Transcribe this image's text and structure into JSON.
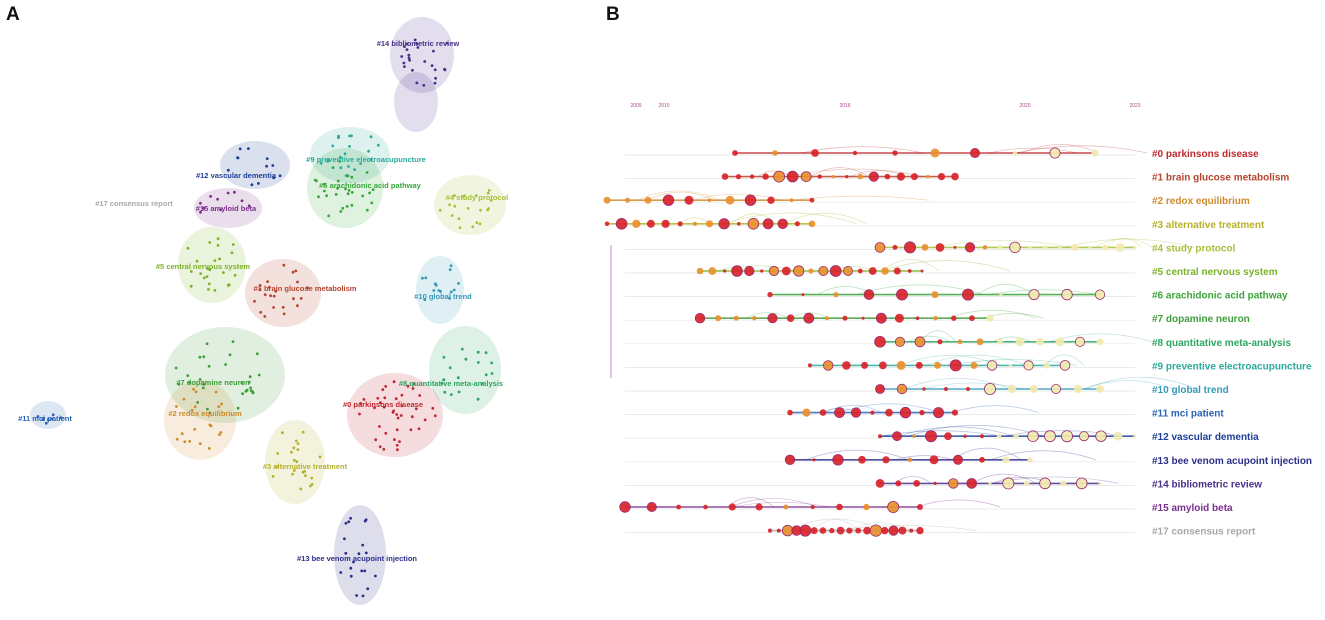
{
  "panels": {
    "a": "A",
    "b": "B"
  },
  "colors": {
    "c0": "#c0282f",
    "c1": "#b5452e",
    "c2": "#d08a2a",
    "c3": "#b5b229",
    "c4": "#a6c13c",
    "c5": "#7ab327",
    "c6": "#3aa53a",
    "c7": "#3f9e3a",
    "c8": "#2da561",
    "c9": "#2aab9b",
    "c10": "#3599b8",
    "c11": "#2a62b5",
    "c12": "#1e3f97",
    "c13": "#2b2e8a",
    "c14": "#4a2f8c",
    "c15": "#7b2f8c",
    "c17": "#a8a8a8"
  },
  "network": {
    "clusters": [
      {
        "id": "c14",
        "label": "#14 bibliometric review",
        "color": "c14"
      },
      {
        "id": "c9",
        "label": "#9 preventive electroacupuncture",
        "color": "c9"
      },
      {
        "id": "c12",
        "label": "#12 vascular dementia",
        "color": "c12"
      },
      {
        "id": "c6",
        "label": "#6 arachidonic acid pathway",
        "color": "c6"
      },
      {
        "id": "c17",
        "label": "#17 consensus report",
        "color": "c17"
      },
      {
        "id": "c15",
        "label": "#15 amyloid beta",
        "color": "c15"
      },
      {
        "id": "c4",
        "label": "#4 study protocol",
        "color": "c4"
      },
      {
        "id": "c5",
        "label": "#5 central nervous system",
        "color": "c5"
      },
      {
        "id": "c1",
        "label": "#1 brain glucose metabolism",
        "color": "c1"
      },
      {
        "id": "c10",
        "label": "#10 global trend",
        "color": "c10"
      },
      {
        "id": "c7",
        "label": "#7 dopamine neuron",
        "color": "c7"
      },
      {
        "id": "c8",
        "label": "#8 quantitative meta-analysis",
        "color": "c8"
      },
      {
        "id": "c0",
        "label": "#0 parkinsons disease",
        "color": "c0"
      },
      {
        "id": "c11",
        "label": "#11 mci patient",
        "color": "c11"
      },
      {
        "id": "c2",
        "label": "#2 redox equilibrium",
        "color": "c2"
      },
      {
        "id": "c3",
        "label": "#3 alternative treatment",
        "color": "c3"
      },
      {
        "id": "c13",
        "label": "#13 bee venom acupoint injection",
        "color": "c13"
      }
    ]
  },
  "timeline": {
    "years": [
      "2009",
      "2010",
      "2016",
      "2020",
      "2023"
    ],
    "clusters": [
      {
        "label": "#0 parkinsons disease",
        "color": "c0"
      },
      {
        "label": "#1 brain glucose metabolism",
        "color": "c1"
      },
      {
        "label": "#2 redox equilibrium",
        "color": "c2"
      },
      {
        "label": "#3 alternative treatment",
        "color": "c3"
      },
      {
        "label": "#4 study protocol",
        "color": "c4"
      },
      {
        "label": "#5 central nervous system",
        "color": "c5"
      },
      {
        "label": "#6 arachidonic acid pathway",
        "color": "c6"
      },
      {
        "label": "#7 dopamine neuron",
        "color": "c7"
      },
      {
        "label": "#8 quantitative meta-analysis",
        "color": "c8"
      },
      {
        "label": "#9 preventive electroacupuncture",
        "color": "c9"
      },
      {
        "label": "#10 global trend",
        "color": "c10"
      },
      {
        "label": "#11 mci patient",
        "color": "c11"
      },
      {
        "label": "#12 vascular dementia",
        "color": "c12"
      },
      {
        "label": "#13 bee venom acupoint injection",
        "color": "c13"
      },
      {
        "label": "#14 bibliometric review",
        "color": "c14"
      },
      {
        "label": "#15 amyloid beta",
        "color": "c15"
      },
      {
        "label": "#17 consensus report",
        "color": "c17"
      }
    ]
  }
}
